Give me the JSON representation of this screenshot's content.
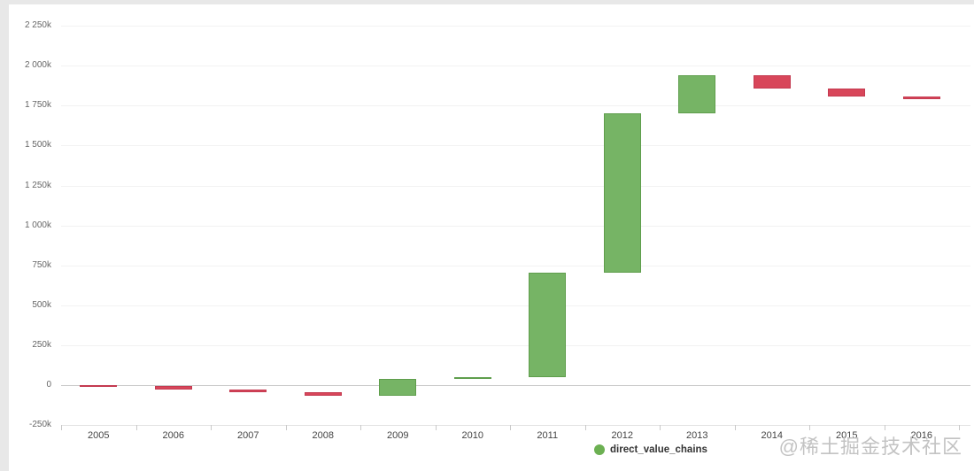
{
  "page": {
    "background_color": "#e8e8e8",
    "card_color": "#ffffff"
  },
  "legend": {
    "label": "direct_value_chains",
    "dot_color": "#6cb052",
    "position": "bottom"
  },
  "watermark": {
    "text": "@稀土掘金技术社区"
  },
  "chart_data": {
    "type": "bar",
    "subtype": "waterfall",
    "title": "",
    "xlabel": "",
    "ylabel": "",
    "series_name": "direct_value_chains",
    "values_unit": "thousands (k)",
    "categories": [
      "2005",
      "2006",
      "2007",
      "2008",
      "2009",
      "2010",
      "2011",
      "2012",
      "2013",
      "2014",
      "2015",
      "2016"
    ],
    "steps": [
      {
        "category": "2005",
        "start": 0,
        "end": -4,
        "direction": "decrease"
      },
      {
        "category": "2006",
        "start": -4,
        "end": -25,
        "direction": "decrease"
      },
      {
        "category": "2007",
        "start": -25,
        "end": -43,
        "direction": "decrease"
      },
      {
        "category": "2008",
        "start": -43,
        "end": -65,
        "direction": "decrease"
      },
      {
        "category": "2009",
        "start": -65,
        "end": 41,
        "direction": "increase"
      },
      {
        "category": "2010",
        "start": 41,
        "end": 49,
        "direction": "increase"
      },
      {
        "category": "2011",
        "start": 49,
        "end": 706,
        "direction": "increase"
      },
      {
        "category": "2012",
        "start": 706,
        "end": 1702,
        "direction": "increase"
      },
      {
        "category": "2013",
        "start": 1702,
        "end": 1941,
        "direction": "increase"
      },
      {
        "category": "2014",
        "start": 1941,
        "end": 1856,
        "direction": "decrease"
      },
      {
        "category": "2015",
        "start": 1856,
        "end": 1806,
        "direction": "decrease"
      },
      {
        "category": "2016",
        "start": 1806,
        "end": 1789,
        "direction": "decrease"
      }
    ],
    "y_axis": {
      "range": [
        -250,
        2250
      ],
      "ticks": [
        {
          "value": 2250,
          "label": "2 250k"
        },
        {
          "value": 2000,
          "label": "2 000k"
        },
        {
          "value": 1750,
          "label": "1 750k"
        },
        {
          "value": 1500,
          "label": "1 500k"
        },
        {
          "value": 1250,
          "label": "1 250k"
        },
        {
          "value": 1000,
          "label": "1 000k"
        },
        {
          "value": 750,
          "label": "750k"
        },
        {
          "value": 500,
          "label": "500k"
        },
        {
          "value": 250,
          "label": "250k"
        },
        {
          "value": 0,
          "label": "0"
        },
        {
          "value": -250,
          "label": "-250k"
        }
      ]
    },
    "colors": {
      "increase_fill": "#76b465",
      "increase_border": "#5f9e4c",
      "decrease_fill": "#d8465a",
      "decrease_border": "#c43a50",
      "gridline": "#f2f2f2",
      "zero_line": "#c9c9c9"
    },
    "grid": true,
    "legend_position": "bottom"
  }
}
